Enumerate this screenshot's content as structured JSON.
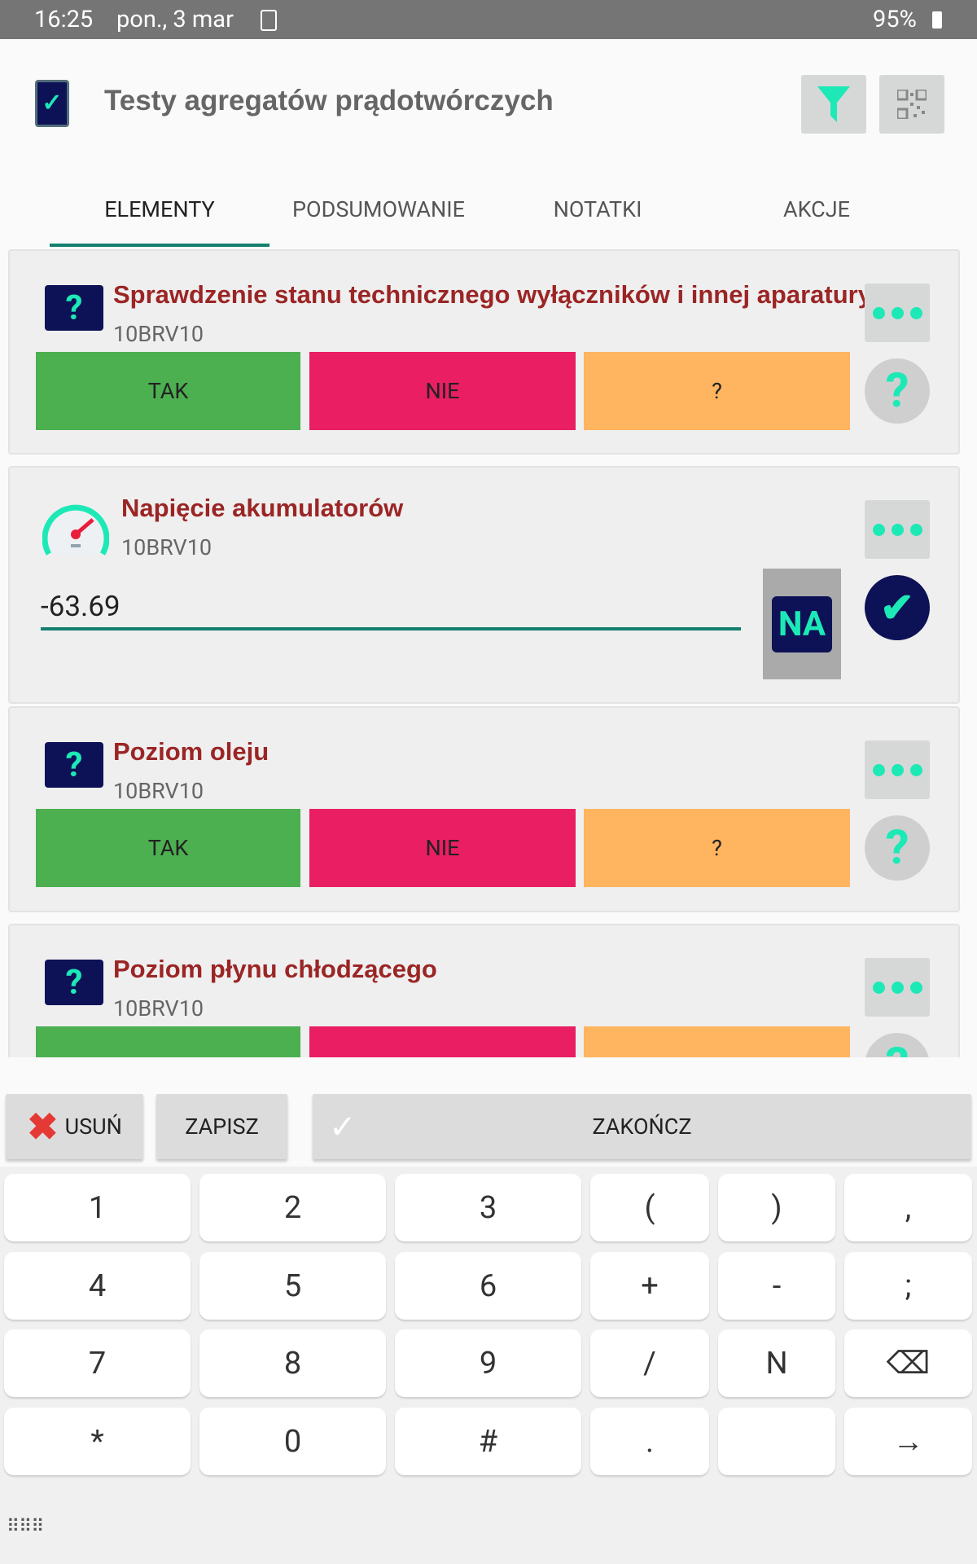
{
  "status_bar": {
    "time": "16:25",
    "date": "pon., 3 mar",
    "battery": "95%"
  },
  "header": {
    "title": "Testy agregatów prądotwórczych"
  },
  "tabs": [
    {
      "label": "ELEMENTY",
      "active": true
    },
    {
      "label": "PODSUMOWANIE"
    },
    {
      "label": "NOTATKI"
    },
    {
      "label": "AKCJE"
    }
  ],
  "items": [
    {
      "title": "Sprawdzenie stanu technicznego wyłączników i innej aparatury",
      "code": "10BRV10",
      "options": [
        "TAK",
        "NIE",
        "?"
      ]
    },
    {
      "title": "Napięcie akumulatorów",
      "code": "10BRV10",
      "value": "-63.69",
      "na_label": "NA"
    },
    {
      "title": "Poziom oleju",
      "code": "10BRV10",
      "options": [
        "TAK",
        "NIE",
        "?"
      ]
    },
    {
      "title": "Poziom płynu chłodzącego",
      "code": "10BRV10"
    }
  ],
  "actions": {
    "delete": "USUŃ",
    "save": "ZAPISZ",
    "finish": "ZAKOŃCZ"
  },
  "keyboard": [
    [
      "1",
      "2",
      "3",
      "(",
      ")",
      ","
    ],
    [
      "4",
      "5",
      "6",
      "+",
      "-",
      ";"
    ],
    [
      "7",
      "8",
      "9",
      "/",
      "N",
      "⌫"
    ],
    [
      "*",
      "0",
      "#",
      ".",
      "",
      "→"
    ]
  ],
  "colors": {
    "yes": "#4caf50",
    "no": "#e91e63",
    "unknown": "#ffb460",
    "accent": "#1de9b6",
    "navy": "#0d1257",
    "title": "#9b2525"
  }
}
